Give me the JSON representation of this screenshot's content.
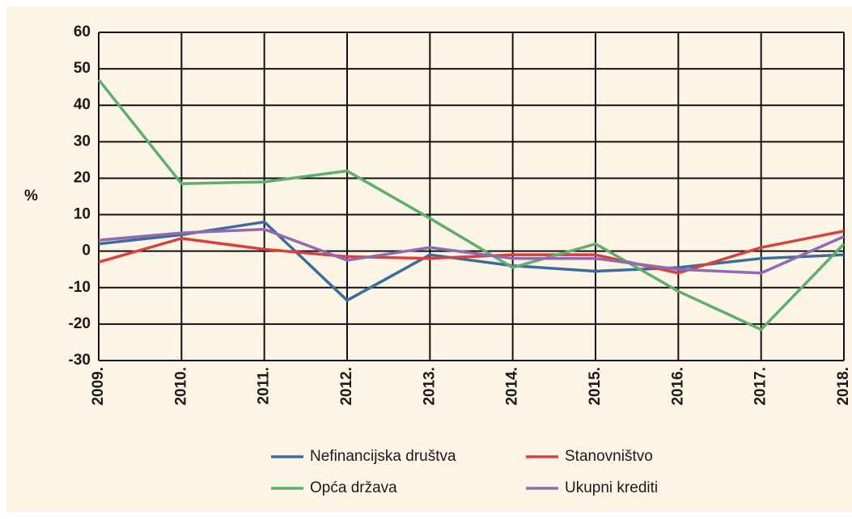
{
  "chart_data": {
    "type": "line",
    "y_label": "%",
    "categories": [
      "2009.",
      "2010.",
      "2011.",
      "2012.",
      "2013.",
      "2014.",
      "2015.",
      "2016.",
      "2017.",
      "2018."
    ],
    "series": [
      {
        "name": "Nefinancijska društva",
        "color": "#3b6c9e",
        "values": [
          2,
          4.5,
          8,
          -13.5,
          -1,
          -4,
          -5.5,
          -4.5,
          -2,
          -1
        ]
      },
      {
        "name": "Stanovništvo",
        "color": "#d8403d",
        "values": [
          -3,
          3.5,
          0.5,
          -1.5,
          -2,
          -1,
          -1,
          -6,
          1,
          5.5
        ]
      },
      {
        "name": "Opća država",
        "color": "#5fae6e",
        "values": [
          47,
          18.5,
          19,
          22,
          9,
          -4.5,
          2,
          -11,
          -21.5,
          2
        ]
      },
      {
        "name": "Ukupni krediti",
        "color": "#8f6bb3",
        "values": [
          3,
          5,
          6,
          -2.5,
          1,
          -2,
          -2,
          -5,
          -6,
          4
        ]
      }
    ],
    "ylim": [
      -30,
      60
    ],
    "yticks": [
      -30,
      -20,
      -10,
      0,
      10,
      20,
      30,
      40,
      50,
      60
    ],
    "grid": true
  }
}
